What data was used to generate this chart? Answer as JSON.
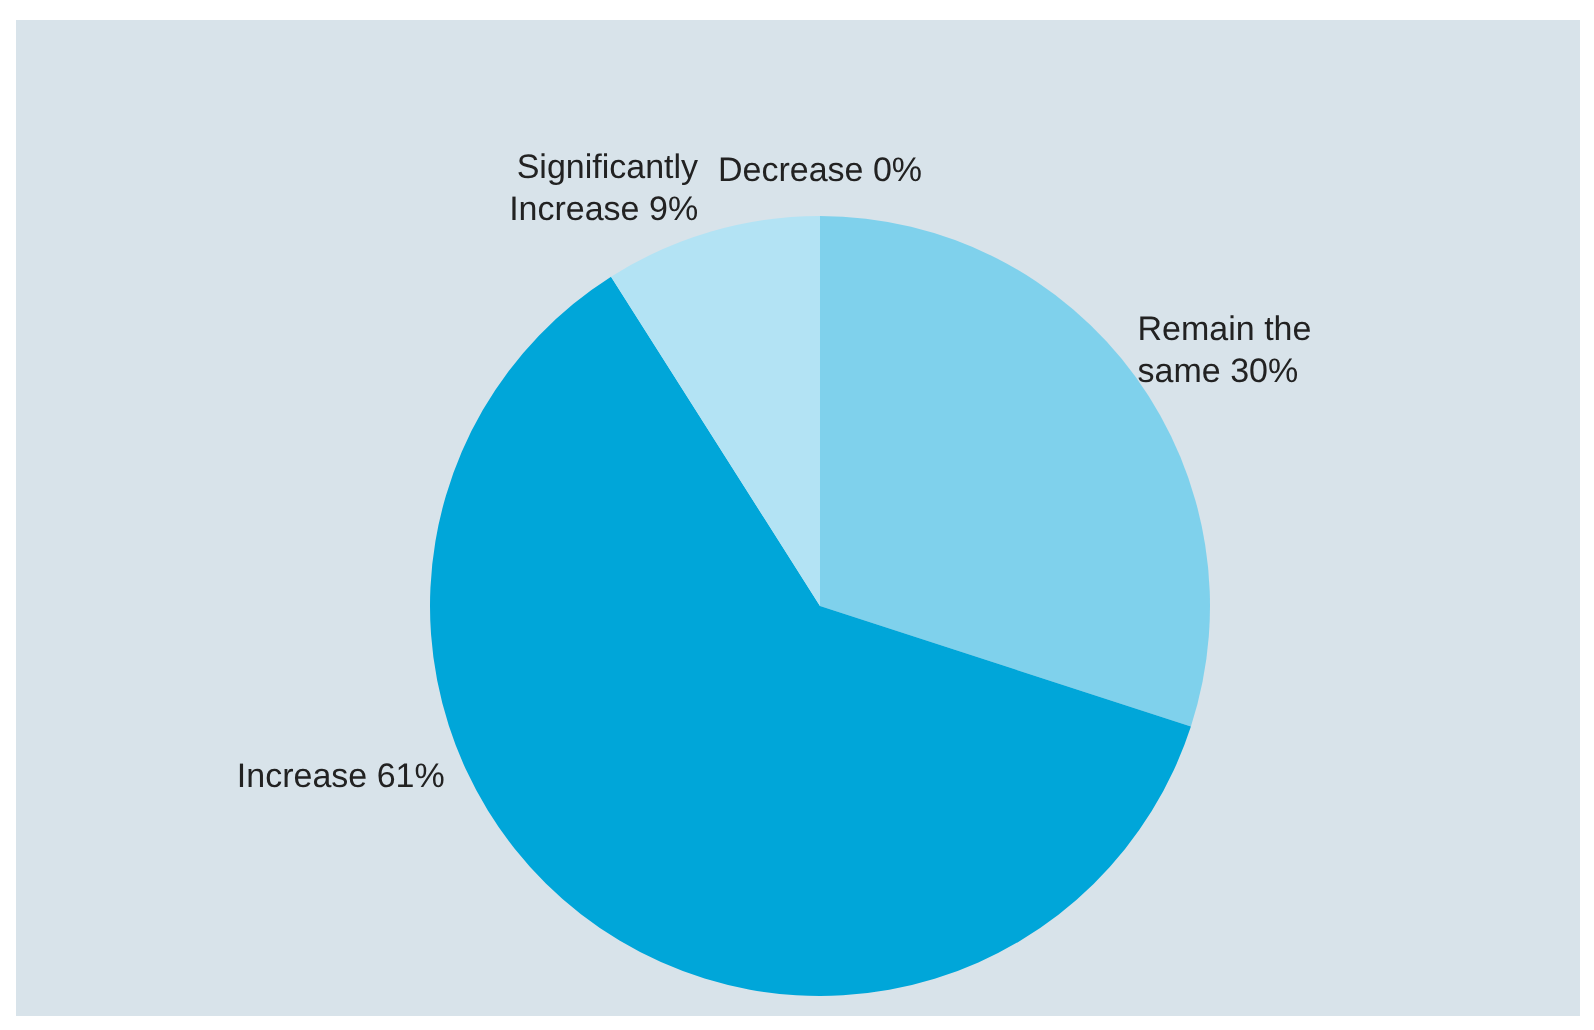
{
  "chart_data": {
    "type": "pie",
    "categories": [
      "Remain the same",
      "Increase",
      "Significantly Increase",
      "Decrease"
    ],
    "values": [
      30,
      61,
      9,
      0
    ],
    "value_labels": [
      "30%",
      "61%",
      "9%",
      "0%"
    ],
    "colors": [
      "#7fd1ec",
      "#00a6d9",
      "#b3e3f4",
      "#5a8fb0"
    ]
  }
}
